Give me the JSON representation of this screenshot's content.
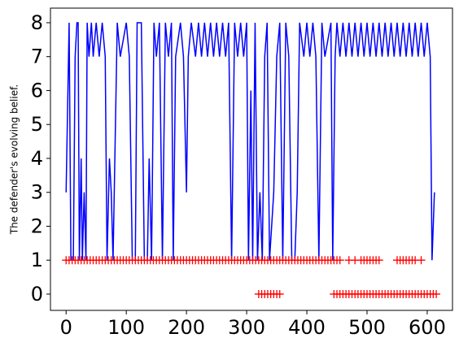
{
  "chart_data": {
    "type": "line",
    "ylabel": "The  defender's evolving belief.",
    "xlim": [
      -26,
      642
    ],
    "ylim": [
      -0.48,
      8.43
    ],
    "xticks": [
      0,
      100,
      200,
      300,
      400,
      500,
      600
    ],
    "yticks": [
      0,
      1,
      2,
      3,
      4,
      5,
      6,
      7,
      8
    ],
    "grid": false,
    "series": [
      {
        "type": "line",
        "color": "#0000ff",
        "x": [
          0,
          5,
          8,
          12,
          15,
          18,
          20,
          22,
          25,
          27,
          30,
          33,
          35,
          38,
          42,
          45,
          50,
          55,
          60,
          65,
          68,
          72,
          75,
          78,
          82,
          85,
          90,
          100,
          105,
          110,
          115,
          118,
          125,
          130,
          135,
          138,
          142,
          146,
          150,
          155,
          160,
          165,
          170,
          175,
          178,
          182,
          190,
          195,
          200,
          203,
          208,
          215,
          220,
          225,
          230,
          235,
          240,
          245,
          250,
          255,
          260,
          265,
          270,
          275,
          280,
          285,
          290,
          295,
          300,
          303,
          307,
          310,
          314,
          318,
          322,
          326,
          330,
          334,
          338,
          345,
          350,
          355,
          360,
          365,
          370,
          375,
          380,
          384,
          388,
          395,
          400,
          405,
          410,
          415,
          420,
          425,
          430,
          440,
          443,
          447,
          450,
          455,
          460,
          465,
          470,
          475,
          480,
          485,
          490,
          495,
          500,
          505,
          510,
          515,
          520,
          525,
          530,
          535,
          540,
          545,
          550,
          555,
          560,
          565,
          570,
          575,
          580,
          585,
          590,
          595,
          600,
          605,
          608,
          612
        ],
        "values": [
          3,
          8,
          1,
          1,
          7,
          8,
          8,
          1,
          4,
          1,
          3,
          1,
          8,
          7,
          8,
          7,
          8,
          7,
          8,
          7,
          1,
          4,
          3,
          1,
          5,
          8,
          7,
          8,
          7,
          1,
          1,
          8,
          8,
          1,
          1,
          4,
          1,
          8,
          7,
          8,
          1,
          8,
          7,
          8,
          1,
          7,
          8,
          7,
          3,
          7,
          8,
          7,
          8,
          7,
          8,
          7,
          8,
          7,
          8,
          7,
          8,
          7,
          8,
          1,
          8,
          7,
          8,
          7,
          8,
          1,
          6,
          1,
          8,
          1,
          3,
          1,
          7,
          8,
          1,
          3,
          7,
          8,
          1,
          8,
          7,
          1,
          1,
          3,
          8,
          7,
          8,
          7,
          8,
          7,
          1,
          8,
          7,
          8,
          1,
          7,
          8,
          7,
          8,
          7,
          8,
          7,
          8,
          7,
          8,
          7,
          8,
          7,
          8,
          7,
          8,
          7,
          8,
          7,
          8,
          7,
          8,
          7,
          8,
          7,
          8,
          7,
          8,
          7,
          8,
          7,
          8,
          7,
          1,
          3
        ]
      },
      {
        "type": "scatter",
        "color": "#ff0000",
        "marker": "+",
        "x": [
          0,
          5,
          10,
          15,
          20,
          25,
          30,
          35,
          40,
          45,
          50,
          55,
          60,
          65,
          70,
          75,
          80,
          85,
          90,
          95,
          100,
          105,
          110,
          115,
          120,
          125,
          130,
          135,
          140,
          145,
          150,
          155,
          160,
          165,
          170,
          175,
          180,
          185,
          190,
          195,
          200,
          205,
          210,
          215,
          220,
          225,
          230,
          235,
          240,
          245,
          250,
          255,
          260,
          265,
          270,
          275,
          280,
          285,
          290,
          295,
          300,
          305,
          310,
          315,
          320,
          325,
          330,
          335,
          340,
          345,
          350,
          355,
          360,
          365,
          370,
          375,
          380,
          385,
          390,
          395,
          400,
          405,
          410,
          415,
          420,
          425,
          430,
          435,
          440,
          445,
          450,
          455,
          470,
          480,
          490,
          495,
          500,
          505,
          510,
          515,
          520,
          550,
          555,
          560,
          565,
          570,
          575,
          580,
          590
        ],
        "values": [
          1,
          1,
          1,
          1,
          1,
          1,
          1,
          1,
          1,
          1,
          1,
          1,
          1,
          1,
          1,
          1,
          1,
          1,
          1,
          1,
          1,
          1,
          1,
          1,
          1,
          1,
          1,
          1,
          1,
          1,
          1,
          1,
          1,
          1,
          1,
          1,
          1,
          1,
          1,
          1,
          1,
          1,
          1,
          1,
          1,
          1,
          1,
          1,
          1,
          1,
          1,
          1,
          1,
          1,
          1,
          1,
          1,
          1,
          1,
          1,
          1,
          1,
          1,
          1,
          1,
          1,
          1,
          1,
          1,
          1,
          1,
          1,
          1,
          1,
          1,
          1,
          1,
          1,
          1,
          1,
          1,
          1,
          1,
          1,
          1,
          1,
          1,
          1,
          1,
          1,
          1,
          1,
          1,
          1,
          1,
          1,
          1,
          1,
          1,
          1,
          1,
          1,
          1,
          1,
          1,
          1,
          1,
          1,
          1
        ]
      },
      {
        "type": "scatter",
        "color": "#ff0000",
        "marker": "+",
        "x": [
          320,
          325,
          330,
          335,
          340,
          345,
          350,
          355,
          445,
          450,
          455,
          460,
          465,
          470,
          475,
          480,
          485,
          490,
          495,
          500,
          505,
          510,
          515,
          520,
          525,
          530,
          535,
          540,
          545,
          550,
          555,
          560,
          565,
          570,
          575,
          580,
          585,
          590,
          595,
          600,
          605,
          610,
          615
        ],
        "values": [
          0,
          0,
          0,
          0,
          0,
          0,
          0,
          0,
          0,
          0,
          0,
          0,
          0,
          0,
          0,
          0,
          0,
          0,
          0,
          0,
          0,
          0,
          0,
          0,
          0,
          0,
          0,
          0,
          0,
          0,
          0,
          0,
          0,
          0,
          0,
          0,
          0,
          0,
          0,
          0,
          0,
          0,
          0
        ]
      }
    ]
  }
}
